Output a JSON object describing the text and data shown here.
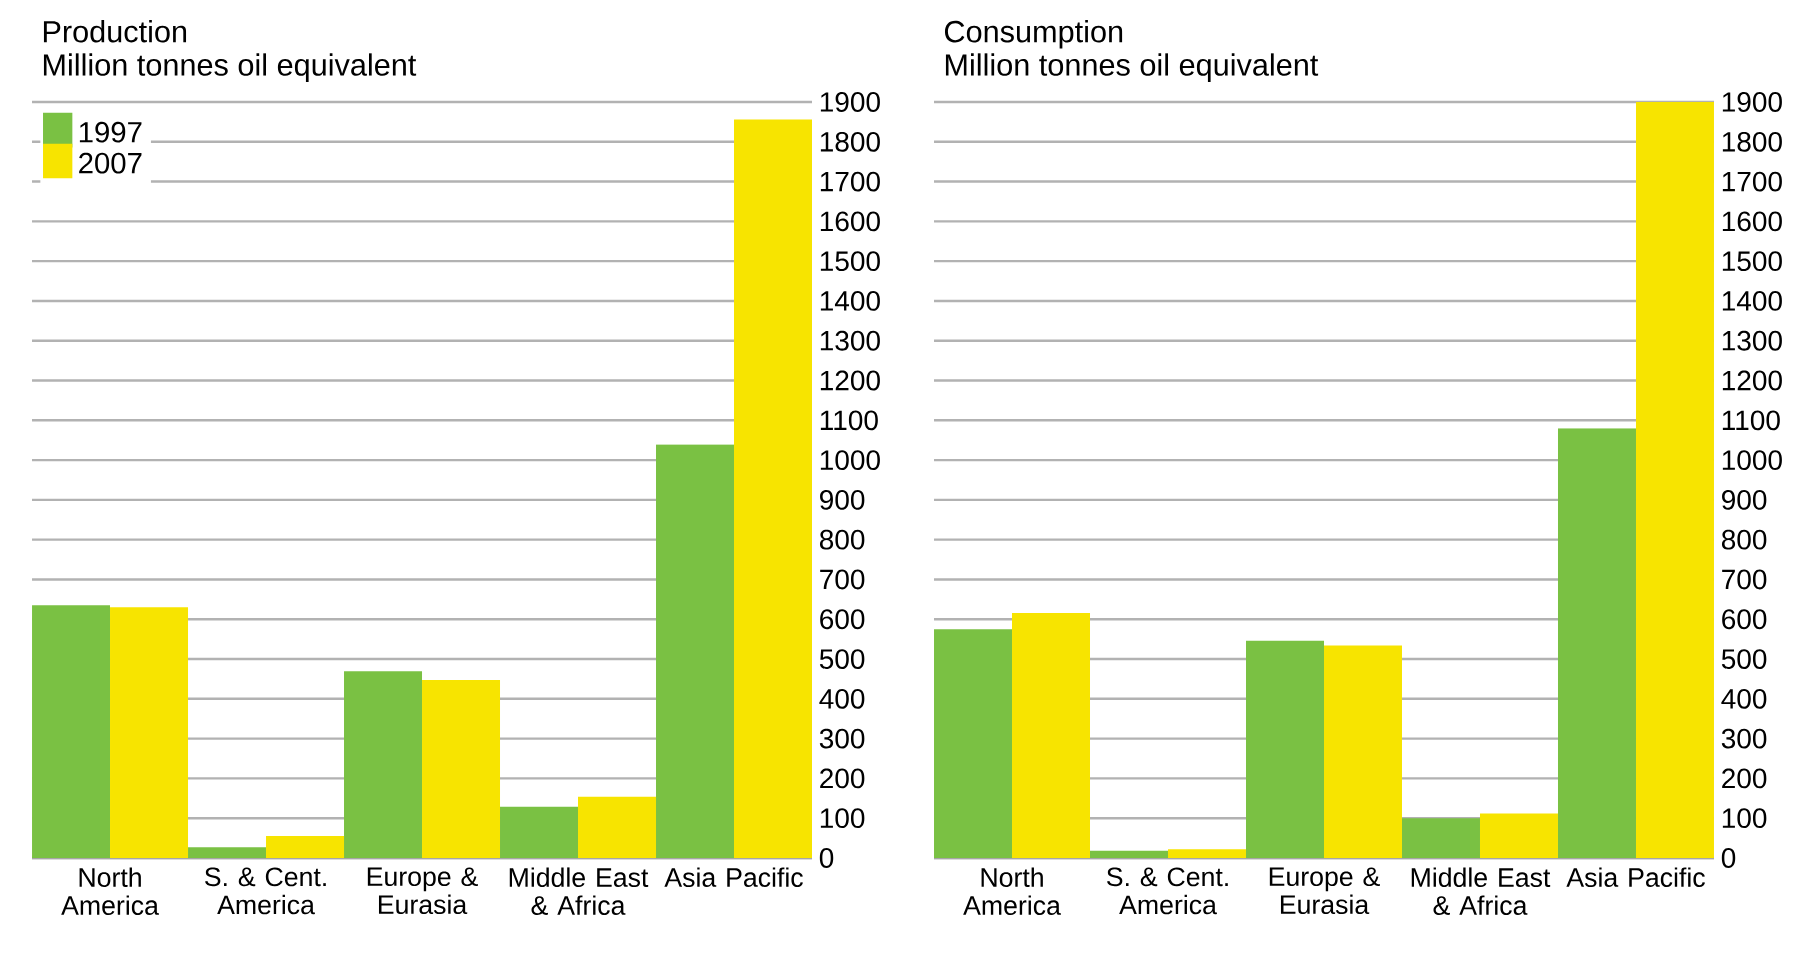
{
  "chart_data": [
    {
      "type": "bar",
      "title": "Production",
      "subtitle": "Million tonnes oil equivalent",
      "categories": [
        "North America",
        "S. & Cent. America",
        "Europe & Eurasia",
        "Middle East & Africa",
        "Asia Pacific"
      ],
      "series": [
        {
          "name": "1997",
          "color": "#7ac143",
          "values": [
            635,
            27,
            469,
            129,
            1039
          ]
        },
        {
          "name": "2007",
          "color": "#f7e400",
          "values": [
            630,
            55,
            447,
            154,
            1856
          ]
        }
      ],
      "ylim": [
        0,
        1900
      ],
      "yticks": [
        0,
        100,
        200,
        300,
        400,
        500,
        600,
        700,
        800,
        900,
        1000,
        1100,
        1200,
        1300,
        1400,
        1500,
        1600,
        1700,
        1800,
        1900
      ],
      "grid": "y",
      "legend": "top left"
    },
    {
      "type": "bar",
      "title": "Consumption",
      "subtitle": "Million tonnes oil equivalent",
      "categories": [
        "North America",
        "S. & Cent. America",
        "Europe & Eurasia",
        "Middle East & Africa",
        "Asia Pacific"
      ],
      "series": [
        {
          "color": "#7ac143",
          "values": [
            575,
            18,
            546,
            100,
            1080
          ]
        },
        {
          "color": "#f7e400",
          "values": [
            616,
            22,
            534,
            112,
            1900
          ]
        }
      ],
      "ylim": [
        0,
        1900
      ],
      "yticks": [
        0,
        100,
        200,
        300,
        400,
        500,
        600,
        700,
        800,
        900,
        1000,
        1100,
        1200,
        1300,
        1400,
        1500,
        1600,
        1700,
        1800,
        1900
      ],
      "grid": "y"
    }
  ]
}
